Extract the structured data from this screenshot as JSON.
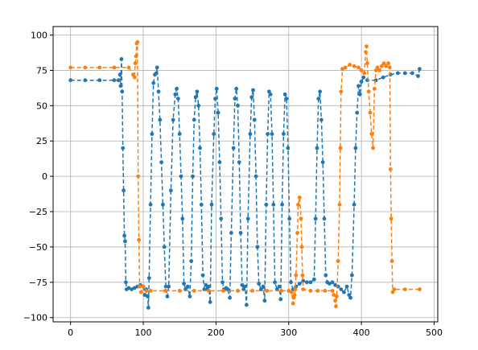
{
  "chart_data": {
    "type": "line",
    "title": "",
    "xlabel": "",
    "ylabel": "",
    "xlim": [
      -24,
      505
    ],
    "ylim": [
      -103,
      106
    ],
    "xticks": [
      0,
      100,
      200,
      300,
      400,
      500
    ],
    "yticks": [
      -100,
      -75,
      -50,
      -25,
      0,
      25,
      50,
      75,
      100
    ],
    "xtick_labels": [
      "0",
      "100",
      "200",
      "300",
      "400",
      "500"
    ],
    "ytick_labels": [
      "−100",
      "−75",
      "−50",
      "−25",
      "0",
      "25",
      "50",
      "75",
      "100"
    ],
    "grid": true,
    "legend": "none",
    "line_style": "dashed",
    "marker": "circle",
    "series": [
      {
        "color": "#1f77b4",
        "points": [
          [
            0,
            68
          ],
          [
            20,
            68
          ],
          [
            40,
            68
          ],
          [
            60,
            68
          ],
          [
            66,
            68
          ],
          [
            68,
            72
          ],
          [
            69,
            64
          ],
          [
            70,
            83
          ],
          [
            71,
            60
          ],
          [
            72,
            20
          ],
          [
            73,
            -10
          ],
          [
            74,
            -42
          ],
          [
            75,
            -46
          ],
          [
            76,
            -75
          ],
          [
            77,
            -80
          ],
          [
            80,
            -79
          ],
          [
            84,
            -80
          ],
          [
            88,
            -79
          ],
          [
            92,
            -78
          ],
          [
            96,
            -77
          ],
          [
            100,
            -78
          ],
          [
            102,
            -84
          ],
          [
            104,
            -80
          ],
          [
            106,
            -85
          ],
          [
            107,
            -93
          ],
          [
            108,
            -72
          ],
          [
            110,
            -20
          ],
          [
            112,
            30
          ],
          [
            114,
            66
          ],
          [
            116,
            72
          ],
          [
            118,
            73
          ],
          [
            119,
            77
          ],
          [
            121,
            60
          ],
          [
            123,
            40
          ],
          [
            125,
            10
          ],
          [
            127,
            -20
          ],
          [
            129,
            -50
          ],
          [
            131,
            -78
          ],
          [
            133,
            -85
          ],
          [
            135,
            -78
          ],
          [
            138,
            -10
          ],
          [
            141,
            40
          ],
          [
            144,
            58
          ],
          [
            146,
            62
          ],
          [
            148,
            55
          ],
          [
            150,
            30
          ],
          [
            152,
            0
          ],
          [
            154,
            -30
          ],
          [
            156,
            -76
          ],
          [
            158,
            -80
          ],
          [
            161,
            -78
          ],
          [
            164,
            -85
          ],
          [
            166,
            -60
          ],
          [
            168,
            0
          ],
          [
            170,
            40
          ],
          [
            172,
            56
          ],
          [
            174,
            60
          ],
          [
            176,
            50
          ],
          [
            178,
            20
          ],
          [
            180,
            -20
          ],
          [
            182,
            -70
          ],
          [
            184,
            -80
          ],
          [
            186,
            -77
          ],
          [
            188,
            -80
          ],
          [
            190,
            -78
          ],
          [
            192,
            -89
          ],
          [
            194,
            -20
          ],
          [
            197,
            30
          ],
          [
            199,
            55
          ],
          [
            201,
            62
          ],
          [
            203,
            45
          ],
          [
            205,
            10
          ],
          [
            207,
            -30
          ],
          [
            209,
            -75
          ],
          [
            211,
            -80
          ],
          [
            214,
            -79
          ],
          [
            216,
            -80
          ],
          [
            219,
            -86
          ],
          [
            221,
            -40
          ],
          [
            224,
            20
          ],
          [
            226,
            55
          ],
          [
            228,
            62
          ],
          [
            230,
            50
          ],
          [
            232,
            10
          ],
          [
            234,
            -40
          ],
          [
            236,
            -77
          ],
          [
            238,
            -80
          ],
          [
            240,
            -78
          ],
          [
            242,
            -91
          ],
          [
            244,
            -30
          ],
          [
            247,
            30
          ],
          [
            249,
            56
          ],
          [
            251,
            61
          ],
          [
            253,
            40
          ],
          [
            255,
            0
          ],
          [
            257,
            -50
          ],
          [
            259,
            -76
          ],
          [
            262,
            -80
          ],
          [
            265,
            -78
          ],
          [
            267,
            -88
          ],
          [
            269,
            -20
          ],
          [
            271,
            30
          ],
          [
            273,
            60
          ],
          [
            275,
            58
          ],
          [
            277,
            30
          ],
          [
            279,
            -20
          ],
          [
            281,
            -75
          ],
          [
            284,
            -80
          ],
          [
            287,
            -78
          ],
          [
            289,
            -87
          ],
          [
            291,
            -20
          ],
          [
            293,
            30
          ],
          [
            295,
            58
          ],
          [
            297,
            55
          ],
          [
            299,
            20
          ],
          [
            301,
            -30
          ],
          [
            303,
            -75
          ],
          [
            306,
            -80
          ],
          [
            310,
            -78
          ],
          [
            315,
            -76
          ],
          [
            320,
            -74
          ],
          [
            325,
            -75
          ],
          [
            330,
            -75
          ],
          [
            335,
            -73
          ],
          [
            337,
            -30
          ],
          [
            339,
            20
          ],
          [
            341,
            55
          ],
          [
            343,
            60
          ],
          [
            345,
            40
          ],
          [
            347,
            10
          ],
          [
            349,
            -30
          ],
          [
            351,
            -70
          ],
          [
            353,
            -75
          ],
          [
            356,
            -76
          ],
          [
            360,
            -75
          ],
          [
            364,
            -77
          ],
          [
            368,
            -78
          ],
          [
            372,
            -80
          ],
          [
            376,
            -82
          ],
          [
            380,
            -78
          ],
          [
            383,
            -84
          ],
          [
            385,
            -86
          ],
          [
            387,
            -70
          ],
          [
            390,
            -20
          ],
          [
            392,
            20
          ],
          [
            394,
            45
          ],
          [
            396,
            64
          ],
          [
            398,
            58
          ],
          [
            400,
            67
          ],
          [
            403,
            70
          ],
          [
            408,
            68
          ],
          [
            420,
            68
          ],
          [
            430,
            70
          ],
          [
            440,
            72
          ],
          [
            450,
            73
          ],
          [
            460,
            73
          ],
          [
            470,
            73
          ],
          [
            478,
            71
          ],
          [
            480,
            76
          ]
        ]
      },
      {
        "color": "#ff7f0e",
        "points": [
          [
            0,
            77
          ],
          [
            20,
            77
          ],
          [
            40,
            77
          ],
          [
            60,
            77
          ],
          [
            80,
            77
          ],
          [
            86,
            72
          ],
          [
            88,
            70
          ],
          [
            89,
            80
          ],
          [
            90,
            85
          ],
          [
            91,
            94
          ],
          [
            92,
            95
          ],
          [
            93,
            0
          ],
          [
            94,
            -45
          ],
          [
            95,
            -78
          ],
          [
            97,
            -82
          ],
          [
            100,
            -78
          ],
          [
            104,
            -81
          ],
          [
            110,
            -81
          ],
          [
            130,
            -81
          ],
          [
            150,
            -81
          ],
          [
            170,
            -81
          ],
          [
            190,
            -81
          ],
          [
            210,
            -81
          ],
          [
            230,
            -81
          ],
          [
            250,
            -81
          ],
          [
            270,
            -81
          ],
          [
            290,
            -81
          ],
          [
            300,
            -81
          ],
          [
            304,
            -82
          ],
          [
            306,
            -90
          ],
          [
            307,
            -86
          ],
          [
            308,
            -84
          ],
          [
            309,
            -80
          ],
          [
            310,
            -70
          ],
          [
            312,
            -40
          ],
          [
            313,
            -20
          ],
          [
            315,
            -15
          ],
          [
            317,
            -30
          ],
          [
            318,
            -50
          ],
          [
            319,
            -70
          ],
          [
            320,
            -80
          ],
          [
            330,
            -81
          ],
          [
            340,
            -81
          ],
          [
            350,
            -81
          ],
          [
            360,
            -81
          ],
          [
            362,
            -84
          ],
          [
            364,
            -88
          ],
          [
            365,
            -92
          ],
          [
            366,
            -85
          ],
          [
            368,
            -60
          ],
          [
            370,
            -20
          ],
          [
            371,
            20
          ],
          [
            372,
            60
          ],
          [
            374,
            76
          ],
          [
            378,
            77
          ],
          [
            384,
            79
          ],
          [
            390,
            78
          ],
          [
            396,
            77
          ],
          [
            400,
            75
          ],
          [
            404,
            73
          ],
          [
            406,
            88
          ],
          [
            407,
            92
          ],
          [
            408,
            80
          ],
          [
            410,
            60
          ],
          [
            412,
            45
          ],
          [
            414,
            30
          ],
          [
            416,
            20
          ],
          [
            418,
            62
          ],
          [
            420,
            75
          ],
          [
            422,
            77
          ],
          [
            425,
            75
          ],
          [
            428,
            78
          ],
          [
            431,
            80
          ],
          [
            434,
            78
          ],
          [
            437,
            80
          ],
          [
            439,
            77
          ],
          [
            440,
            5
          ],
          [
            441,
            -30
          ],
          [
            442,
            -60
          ],
          [
            443,
            -82
          ],
          [
            445,
            -80
          ],
          [
            460,
            -80
          ],
          [
            480,
            -80
          ]
        ]
      }
    ]
  }
}
